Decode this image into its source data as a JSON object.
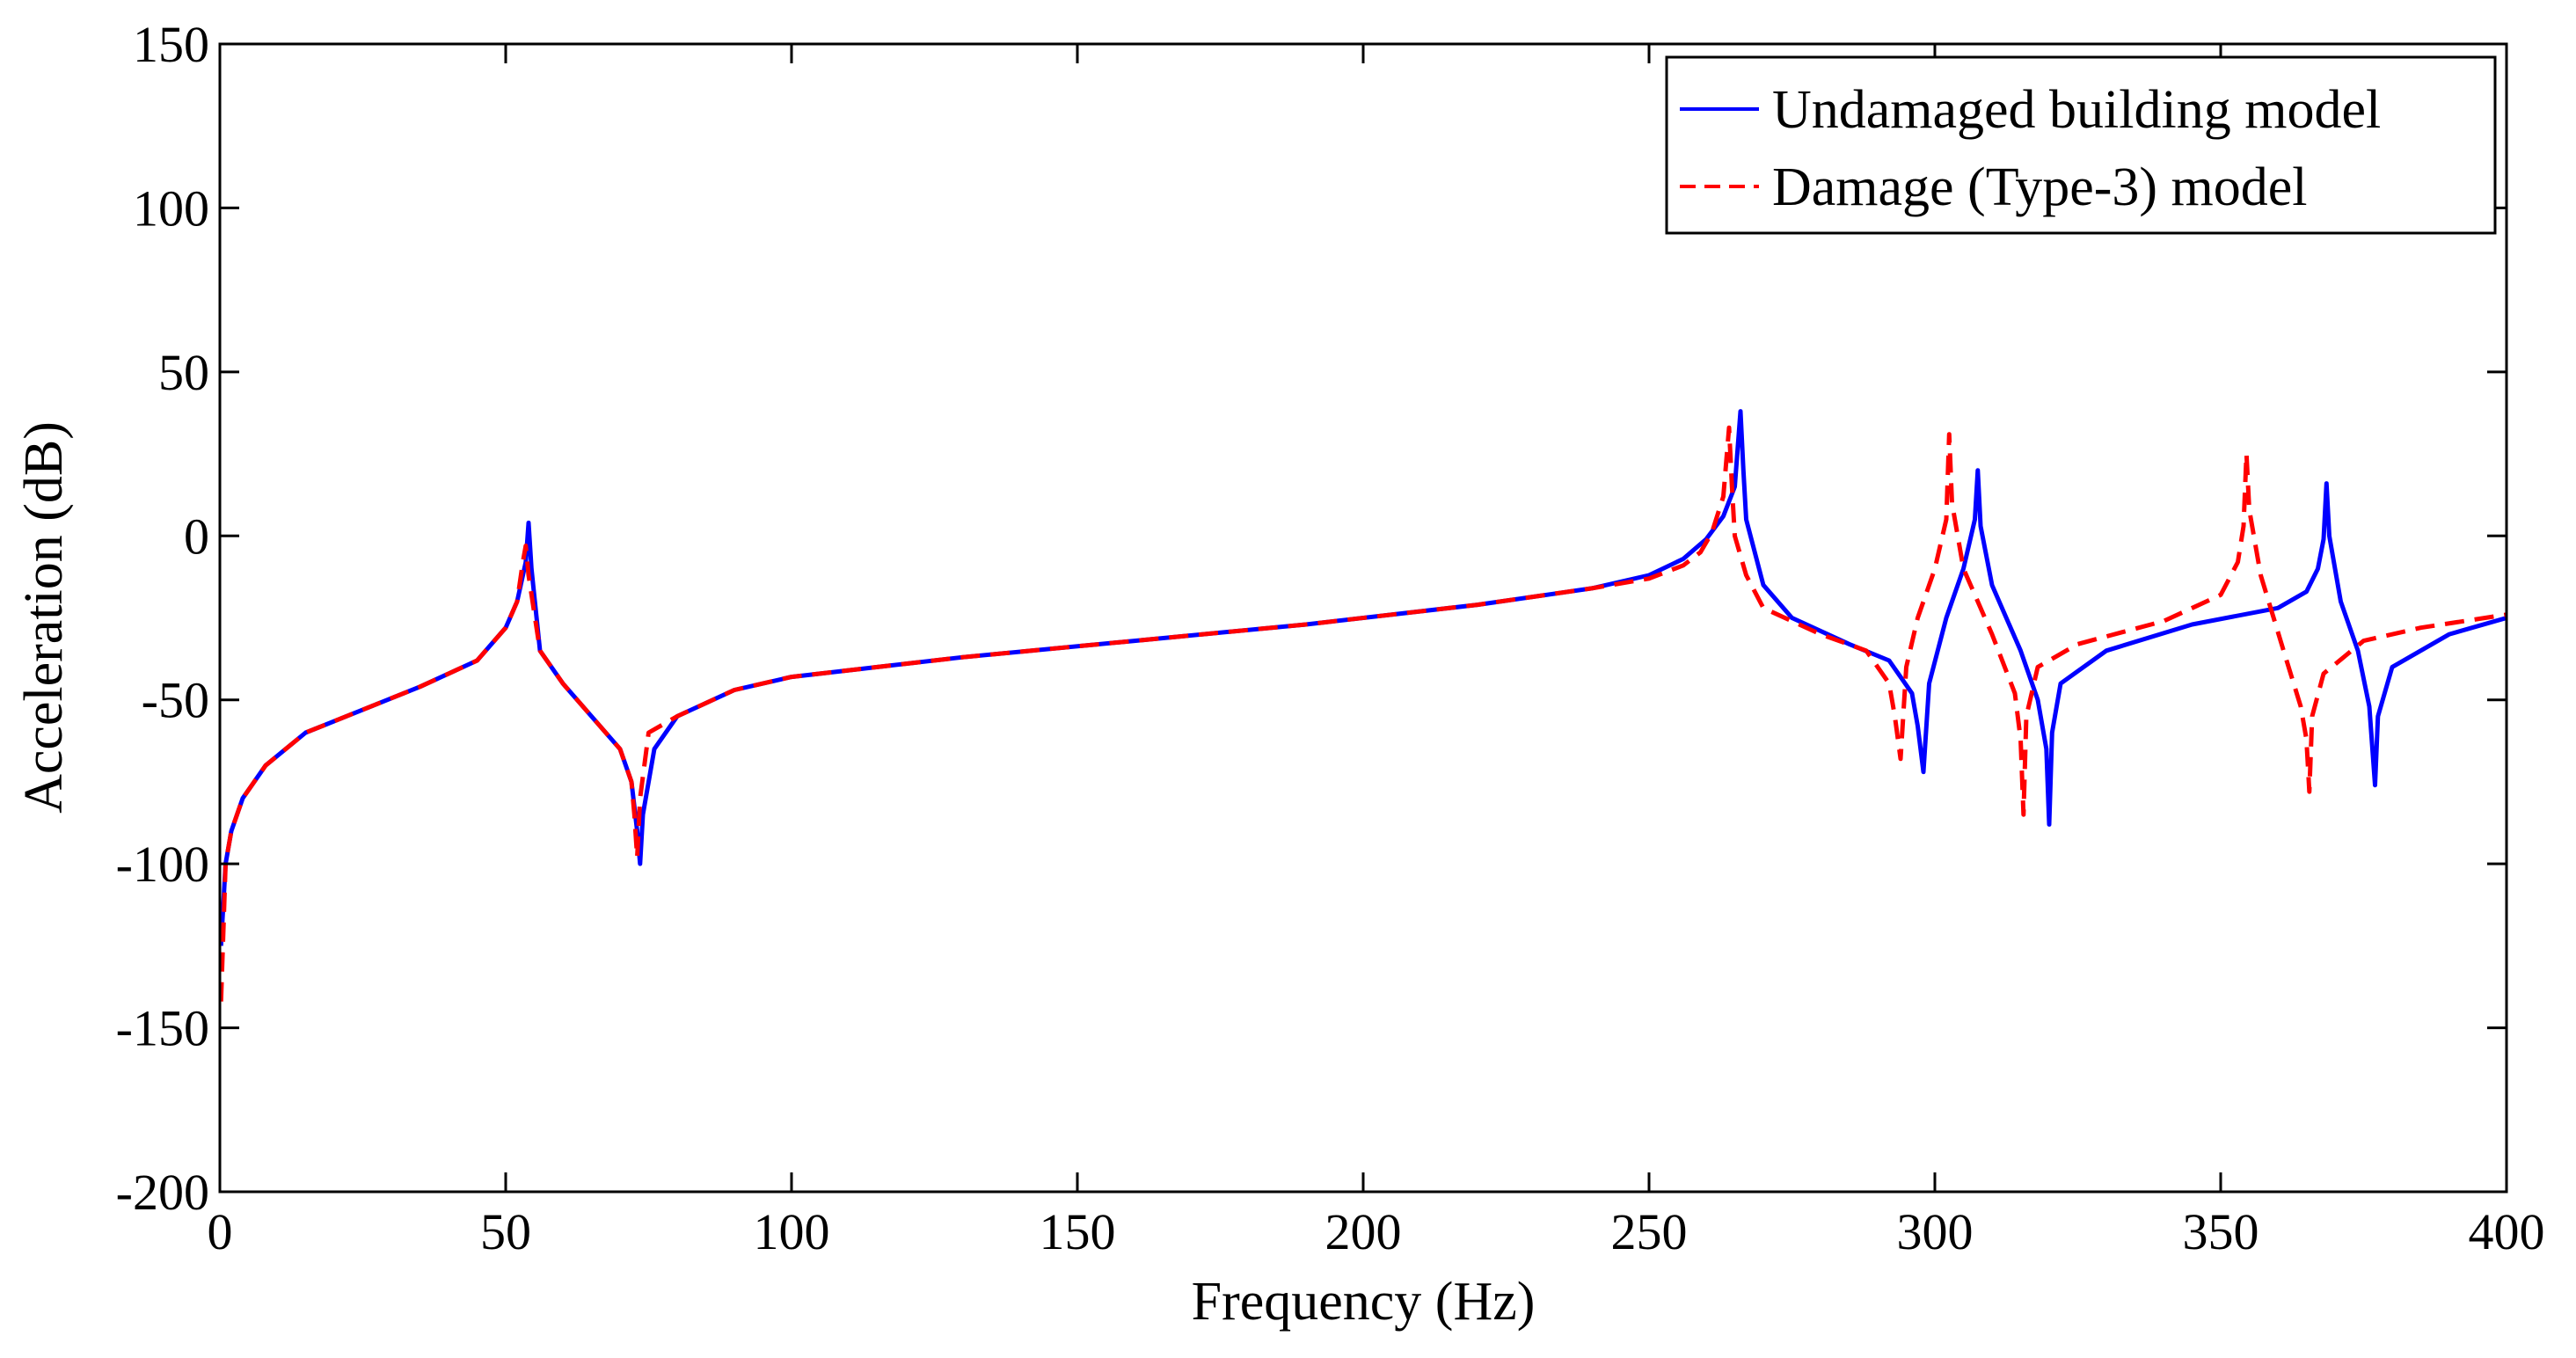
{
  "chart_data": {
    "type": "line",
    "title": "",
    "xlabel": "Frequency (Hz)",
    "ylabel": "Acceleration (dB)",
    "xlim": [
      0,
      400
    ],
    "ylim": [
      -200,
      150
    ],
    "xticks": [
      0,
      50,
      100,
      150,
      200,
      250,
      300,
      350,
      400
    ],
    "yticks": [
      150,
      100,
      50,
      0,
      -50,
      -100,
      -150,
      -200
    ],
    "xtick_labels": [
      "0",
      "50",
      "100",
      "150",
      "200",
      "250",
      "300",
      "350",
      "400"
    ],
    "ytick_labels": [
      "150",
      "100",
      "50",
      "0",
      "-50",
      "-100",
      "-150",
      "-200"
    ],
    "grid": false,
    "legend_position": "top-right",
    "series": [
      {
        "name": "Undamaged building model",
        "color": "#0000ff",
        "style": "solid",
        "x": [
          0.2,
          1,
          2,
          4,
          8,
          15,
          25,
          35,
          45,
          50,
          52,
          53.5,
          54,
          54.5,
          56,
          60,
          65,
          70,
          72,
          73,
          73.5,
          74,
          76,
          80,
          90,
          100,
          130,
          160,
          190,
          220,
          240,
          250,
          256,
          260,
          263,
          265,
          266,
          266.5,
          267,
          270,
          275,
          285,
          292,
          296,
          297,
          298,
          299,
          302,
          305,
          307,
          307.5,
          308,
          310,
          315,
          318,
          319.5,
          320,
          320.5,
          322,
          330,
          345,
          360,
          365,
          367,
          368,
          368.5,
          369,
          371,
          374,
          376,
          377,
          377.5,
          380,
          390,
          400
        ],
        "y": [
          -125,
          -100,
          -90,
          -80,
          -70,
          -60,
          -53,
          -46,
          -38,
          -28,
          -20,
          -8,
          4,
          -10,
          -35,
          -45,
          -55,
          -65,
          -75,
          -90,
          -100,
          -85,
          -65,
          -55,
          -47,
          -43,
          -37,
          -32,
          -27,
          -21,
          -16,
          -12,
          -7,
          -1,
          6,
          15,
          38,
          20,
          5,
          -15,
          -25,
          -33,
          -38,
          -48,
          -58,
          -72,
          -45,
          -25,
          -10,
          5,
          20,
          3,
          -15,
          -35,
          -50,
          -65,
          -88,
          -60,
          -45,
          -35,
          -27,
          -22,
          -17,
          -10,
          -1,
          16,
          0,
          -20,
          -35,
          -52,
          -76,
          -55,
          -40,
          -30,
          -25
        ]
      },
      {
        "name": "Damage (Type-3) model",
        "color": "#ff0000",
        "style": "dashed",
        "x": [
          0.2,
          1,
          2,
          4,
          8,
          15,
          25,
          35,
          45,
          50,
          52,
          53,
          53.5,
          54,
          56,
          60,
          65,
          70,
          72,
          72.5,
          73,
          73.5,
          75,
          80,
          90,
          100,
          130,
          160,
          190,
          220,
          240,
          250,
          256,
          259,
          261,
          263,
          264,
          264.5,
          265,
          267,
          270,
          280,
          288,
          292,
          293,
          294,
          295,
          297,
          300,
          302,
          302.5,
          303,
          305,
          310,
          314,
          315,
          315.5,
          316,
          318,
          325,
          340,
          350,
          353,
          354,
          354.5,
          355,
          357,
          361,
          364,
          365,
          365.5,
          366,
          368,
          375,
          385,
          400
        ],
        "y": [
          -142,
          -100,
          -90,
          -80,
          -70,
          -60,
          -53,
          -46,
          -38,
          -28,
          -20,
          -8,
          -3,
          -12,
          -35,
          -45,
          -55,
          -65,
          -75,
          -85,
          -98,
          -80,
          -60,
          -55,
          -47,
          -43,
          -37,
          -32,
          -27,
          -21,
          -16,
          -13,
          -9,
          -5,
          1,
          12,
          33,
          15,
          0,
          -12,
          -22,
          -30,
          -35,
          -45,
          -55,
          -68,
          -40,
          -25,
          -10,
          5,
          31,
          10,
          -10,
          -30,
          -48,
          -62,
          -85,
          -55,
          -40,
          -33,
          -26,
          -18,
          -8,
          3,
          25,
          8,
          -12,
          -35,
          -52,
          -62,
          -78,
          -55,
          -42,
          -32,
          -28,
          -24
        ]
      }
    ]
  }
}
